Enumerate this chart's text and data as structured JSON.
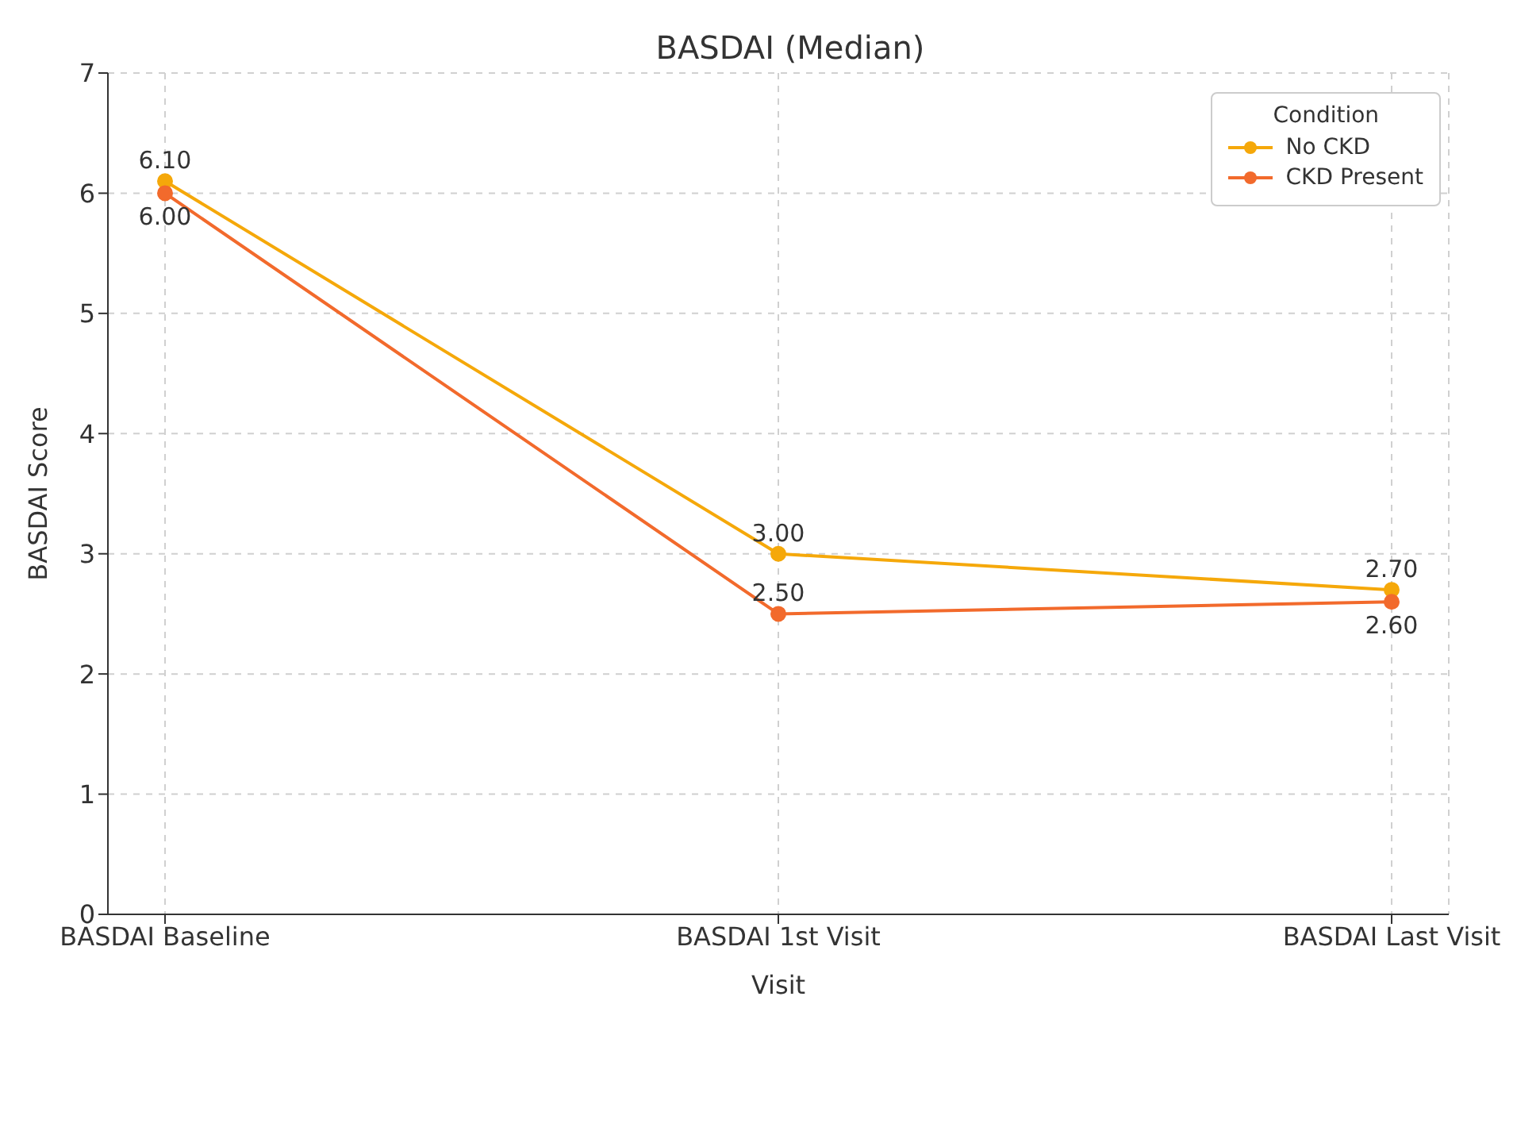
{
  "chart_data": {
    "type": "line",
    "title": "BASDAI (Median)",
    "xlabel": "Visit",
    "ylabel": "BASDAI Score",
    "legend_title": "Condition",
    "categories": [
      "BASDAI Baseline",
      "BASDAI 1st Visit",
      "BASDAI Last Visit"
    ],
    "series": [
      {
        "name": "No CKD",
        "color": "#f5a80a",
        "values": [
          6.1,
          3.0,
          2.7
        ],
        "value_labels": [
          "6.10",
          "3.00",
          "2.70"
        ]
      },
      {
        "name": "CKD Present",
        "color": "#f26a2c",
        "values": [
          6.0,
          2.5,
          2.6
        ],
        "value_labels": [
          "6.00",
          "2.50",
          "2.60"
        ]
      }
    ],
    "ylim": [
      0,
      7
    ],
    "yticks": [
      0,
      1,
      2,
      3,
      4,
      5,
      6,
      7
    ],
    "grid": true,
    "legend": "top right",
    "marker": "circle",
    "line_style": "solid"
  }
}
